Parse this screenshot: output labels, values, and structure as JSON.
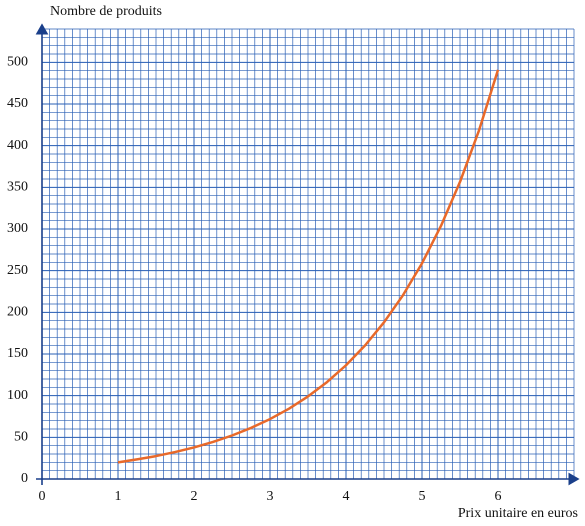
{
  "chart_data": {
    "type": "line",
    "y_label": "Nombre de produits",
    "x_label": "Prix unitaire en euros",
    "x": [
      1,
      1.25,
      1.5,
      1.75,
      2,
      2.25,
      2.5,
      2.75,
      3,
      3.25,
      3.5,
      3.75,
      4,
      4.25,
      4.5,
      4.75,
      5,
      5.25,
      5.5,
      5.75,
      6
    ],
    "series": [
      {
        "color": "#e8692a",
        "values": [
          20,
          23.5,
          27.5,
          32.3,
          37.9,
          44.5,
          52.2,
          61.3,
          71.9,
          84.4,
          99.1,
          116.3,
          136.5,
          160.2,
          188.0,
          220.6,
          258.8,
          303.8,
          356.5,
          418.3,
          490.9
        ]
      }
    ],
    "xlim": [
      0,
      7
    ],
    "xticks": [
      0,
      1,
      2,
      3,
      4,
      5,
      6
    ],
    "ylim": [
      0,
      540
    ],
    "yticks": [
      0,
      50,
      100,
      150,
      200,
      250,
      300,
      350,
      400,
      450,
      500
    ],
    "grid": true,
    "grid_color": "#2a5fb5"
  }
}
